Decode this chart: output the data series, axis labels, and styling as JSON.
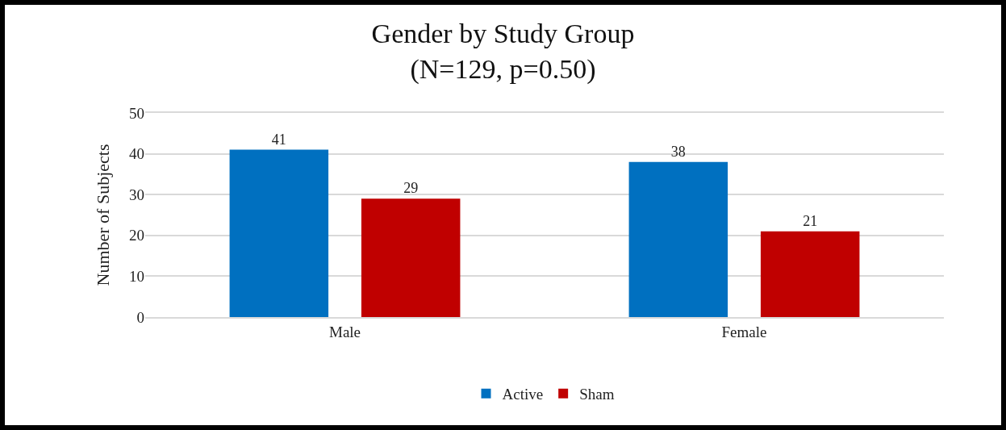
{
  "chart_data": {
    "type": "bar",
    "title": "Gender by Study Group\n(N=129, p=0.50)",
    "ylabel": "Number of Subjects",
    "categories": [
      "Male",
      "Female"
    ],
    "series": [
      {
        "name": "Active",
        "color": "#0070c0",
        "values": [
          41,
          38
        ]
      },
      {
        "name": "Sham",
        "color": "#c00000",
        "values": [
          29,
          21
        ]
      }
    ],
    "ylim": [
      0,
      50
    ],
    "yticks": [
      0,
      10,
      20,
      30,
      40,
      50
    ],
    "grid": "y",
    "legend": "bottom",
    "data_labels": true
  }
}
